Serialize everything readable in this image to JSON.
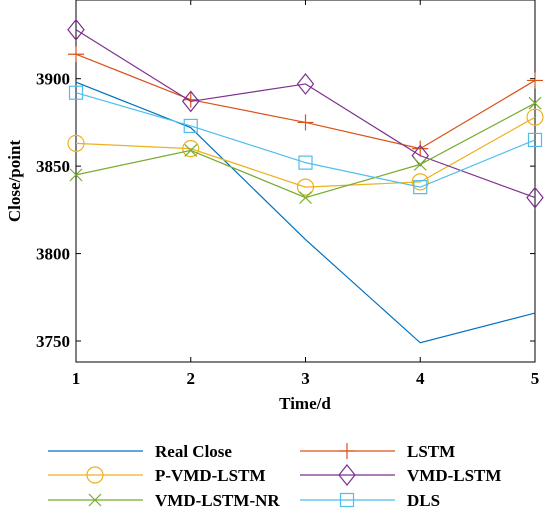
{
  "chart_data": {
    "type": "line",
    "xlabel": "Time/d",
    "ylabel": "Close/point",
    "x": [
      1,
      2,
      3,
      4,
      5
    ],
    "xticks": [
      "1",
      "2",
      "3",
      "4",
      "5"
    ],
    "yticks": [
      "3750",
      "3800",
      "3850",
      "3900"
    ],
    "xlim": [
      1,
      5
    ],
    "ylim": [
      3738,
      3945
    ],
    "grid": false,
    "legend_position": "below-plot",
    "series": [
      {
        "name": "Real Close",
        "color": "#0072BD",
        "marker": "none",
        "values": [
          3898,
          3872,
          3808,
          3749,
          3766
        ]
      },
      {
        "name": "LSTM",
        "color": "#D95319",
        "marker": "plus",
        "values": [
          3914,
          3888,
          3875,
          3860,
          3899
        ]
      },
      {
        "name": "P-VMD-LSTM",
        "color": "#EDB120",
        "marker": "circle",
        "values": [
          3863,
          3860,
          3838,
          3841,
          3878
        ]
      },
      {
        "name": "VMD-LSTM",
        "color": "#7E2F8E",
        "marker": "diamond",
        "values": [
          3928,
          3887,
          3897,
          3856,
          3832
        ]
      },
      {
        "name": "VMD-LSTM-NR",
        "color": "#77AC30",
        "marker": "x",
        "values": [
          3845,
          3859,
          3832,
          3851,
          3886
        ]
      },
      {
        "name": "DLS",
        "color": "#4DBEEE",
        "marker": "square",
        "values": [
          3892,
          3873,
          3852,
          3838,
          3865
        ]
      }
    ]
  }
}
